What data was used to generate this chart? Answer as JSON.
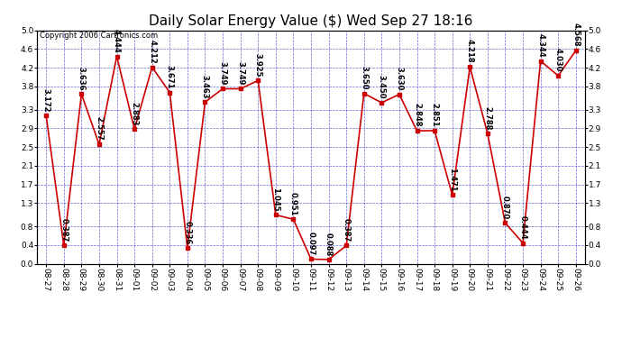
{
  "title": "Daily Solar Energy Value ($) Wed Sep 27 18:16",
  "copyright": "Copyright 2006 Cartronics.com",
  "dates": [
    "08-27",
    "08-28",
    "08-29",
    "08-30",
    "08-31",
    "09-01",
    "09-02",
    "09-03",
    "09-04",
    "09-05",
    "09-06",
    "09-07",
    "09-08",
    "09-09",
    "09-10",
    "09-11",
    "09-12",
    "09-13",
    "09-14",
    "09-15",
    "09-16",
    "09-17",
    "09-18",
    "09-19",
    "09-20",
    "09-21",
    "09-22",
    "09-23",
    "09-24",
    "09-25",
    "09-26"
  ],
  "values": [
    3.172,
    0.387,
    3.636,
    2.557,
    4.444,
    2.883,
    4.212,
    3.671,
    0.336,
    3.463,
    3.749,
    3.749,
    3.925,
    1.045,
    0.951,
    0.097,
    0.088,
    0.387,
    3.65,
    3.45,
    3.63,
    2.848,
    2.851,
    1.471,
    4.218,
    2.788,
    0.87,
    0.444,
    4.344,
    4.03,
    4.568
  ],
  "ylim_min": 0.0,
  "ylim_max": 5.0,
  "yticks": [
    0.0,
    0.4,
    0.8,
    1.3,
    1.7,
    2.1,
    2.5,
    2.9,
    3.3,
    3.8,
    4.2,
    4.6,
    5.0
  ],
  "line_color": "#cc0000",
  "marker_color": "#cc0000",
  "bg_color": "#ffffff",
  "grid_color": "#3333cc",
  "title_fontsize": 11,
  "tick_fontsize": 6.5,
  "annot_fontsize": 6,
  "copyright_fontsize": 6
}
